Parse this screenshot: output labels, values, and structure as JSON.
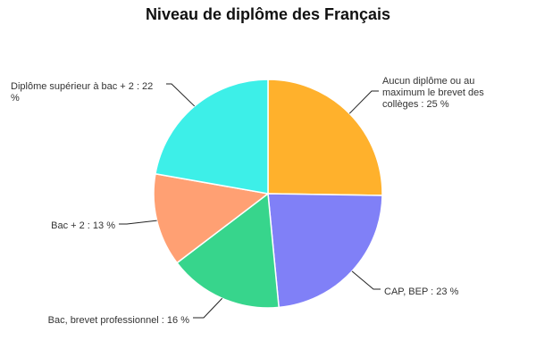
{
  "chart_data": {
    "type": "pie",
    "title": "Niveau de diplôme des Français",
    "slices": [
      {
        "name": "Aucun diplôme ou au maximum le brevet des collèges",
        "value": 25,
        "label_lines": [
          "Aucun diplôme ou au",
          "maximum le brevet des",
          "collèges : 25 %"
        ],
        "color": "#FFB12C"
      },
      {
        "name": "CAP, BEP",
        "value": 23,
        "label_lines": [
          "CAP, BEP : 23 %"
        ],
        "color": "#8080F7"
      },
      {
        "name": "Bac, brevet professionnel",
        "value": 16,
        "label_lines": [
          "Bac, brevet professionnel : 16 %"
        ],
        "color": "#37D58C"
      },
      {
        "name": "Bac + 2",
        "value": 13,
        "label_lines": [
          "Bac + 2 : 13 %"
        ],
        "color": "#FFA073"
      },
      {
        "name": "Diplôme supérieur à bac + 2",
        "value": 22,
        "label_lines": [
          "Diplôme supérieur à bac + 2 : 22",
          "%"
        ],
        "color": "#3DEFE8"
      }
    ]
  }
}
